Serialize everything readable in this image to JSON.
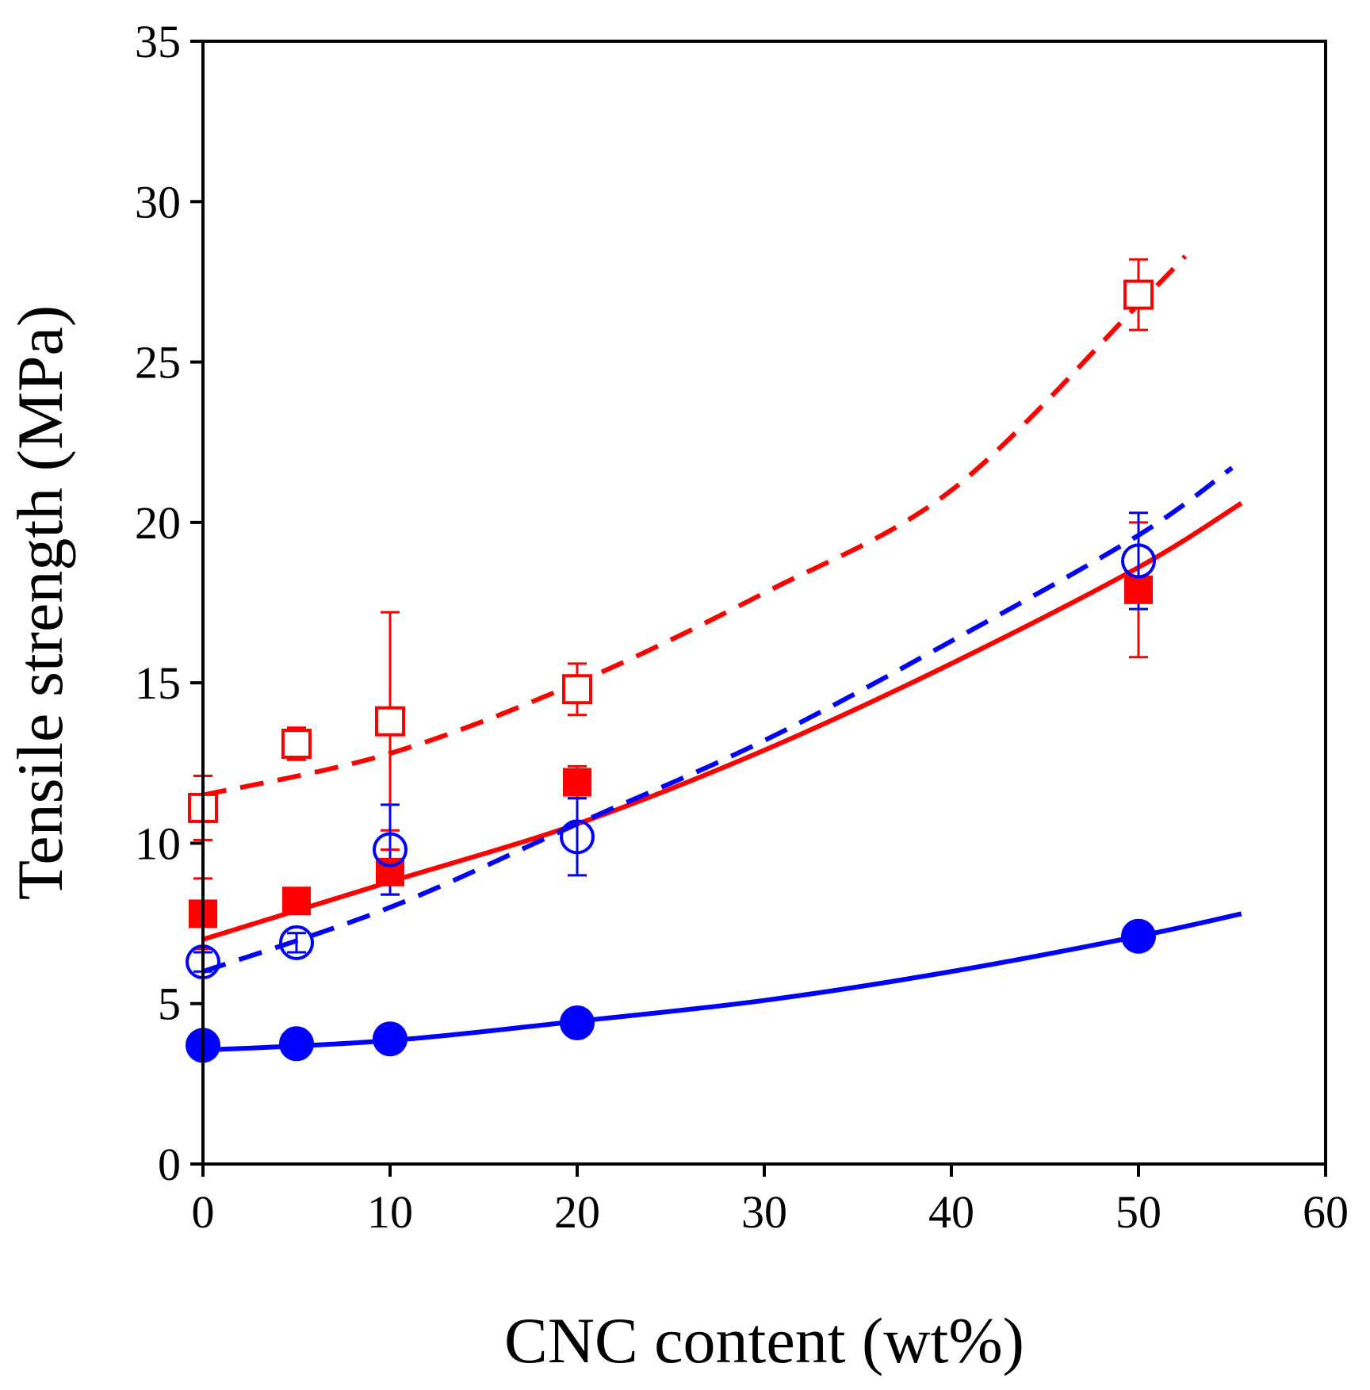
{
  "chart_data": {
    "type": "scatter",
    "title": "",
    "xlabel": "CNC content (wt%)",
    "ylabel": "Tensile strength (MPa)",
    "xlim": [
      0,
      60
    ],
    "ylim": [
      0,
      35
    ],
    "xticks": [
      0,
      10,
      20,
      30,
      40,
      50,
      60
    ],
    "yticks": [
      0,
      5,
      10,
      15,
      20,
      25,
      30,
      35
    ],
    "grid": false,
    "legend": "none",
    "series": [
      {
        "name": "open squares (red)",
        "color": "#ff0000",
        "marker": "square-open",
        "points": [
          {
            "x": 0,
            "y": 11.1,
            "err": 1.0
          },
          {
            "x": 5,
            "y": 13.1,
            "err": 0.5
          },
          {
            "x": 10,
            "y": 13.8,
            "err": 3.4
          },
          {
            "x": 20,
            "y": 14.8,
            "err": 0.8
          },
          {
            "x": 50,
            "y": 27.1,
            "err": 1.1
          }
        ],
        "fit": {
          "style": "dashed",
          "x_range": [
            0,
            52.5
          ],
          "curve": [
            [
              0,
              11.5
            ],
            [
              10,
              12.8
            ],
            [
              20,
              15.0
            ],
            [
              30,
              17.8
            ],
            [
              40,
              21.0
            ],
            [
              50,
              26.8
            ],
            [
              52.5,
              28.3
            ]
          ]
        }
      },
      {
        "name": "filled squares (red)",
        "color": "#ff0000",
        "marker": "square-filled",
        "points": [
          {
            "x": 0,
            "y": 7.8,
            "err": 1.1
          },
          {
            "x": 5,
            "y": 8.2,
            "err": 0.3
          },
          {
            "x": 10,
            "y": 9.1,
            "err": 0.7
          },
          {
            "x": 20,
            "y": 11.9,
            "err": 0.5
          },
          {
            "x": 50,
            "y": 17.9,
            "err": 2.1
          }
        ],
        "fit": {
          "style": "solid",
          "x_range": [
            0,
            55.5
          ],
          "curve": [
            [
              0,
              7.0
            ],
            [
              10,
              8.8
            ],
            [
              20,
              10.6
            ],
            [
              30,
              12.9
            ],
            [
              40,
              15.6
            ],
            [
              50,
              18.6
            ],
            [
              55.5,
              20.6
            ]
          ]
        }
      },
      {
        "name": "open circles (blue)",
        "color": "#0000ff",
        "marker": "circle-open",
        "points": [
          {
            "x": 0,
            "y": 6.3,
            "err": 0.3
          },
          {
            "x": 5,
            "y": 6.9,
            "err": 0.3
          },
          {
            "x": 10,
            "y": 9.8,
            "err": 1.4
          },
          {
            "x": 20,
            "y": 10.2,
            "err": 1.2
          },
          {
            "x": 50,
            "y": 18.8,
            "err": 1.5
          }
        ],
        "fit": {
          "style": "dashed",
          "x_range": [
            0,
            55
          ],
          "curve": [
            [
              0,
              6.0
            ],
            [
              10,
              8.0
            ],
            [
              20,
              10.6
            ],
            [
              30,
              13.2
            ],
            [
              40,
              16.3
            ],
            [
              50,
              19.6
            ],
            [
              55,
              21.7
            ]
          ]
        }
      },
      {
        "name": "filled circles (blue)",
        "color": "#0000ff",
        "marker": "circle-filled",
        "points": [
          {
            "x": 0,
            "y": 3.7,
            "err": 0
          },
          {
            "x": 5,
            "y": 3.75,
            "err": 0
          },
          {
            "x": 10,
            "y": 3.9,
            "err": 0
          },
          {
            "x": 20,
            "y": 4.4,
            "err": 0
          },
          {
            "x": 50,
            "y": 7.1,
            "err": 0
          }
        ],
        "fit": {
          "style": "solid",
          "x_range": [
            0,
            55.5
          ],
          "curve": [
            [
              0,
              3.55
            ],
            [
              10,
              3.85
            ],
            [
              20,
              4.45
            ],
            [
              30,
              5.1
            ],
            [
              40,
              6.0
            ],
            [
              50,
              7.1
            ],
            [
              55.5,
              7.8
            ]
          ]
        }
      }
    ]
  }
}
